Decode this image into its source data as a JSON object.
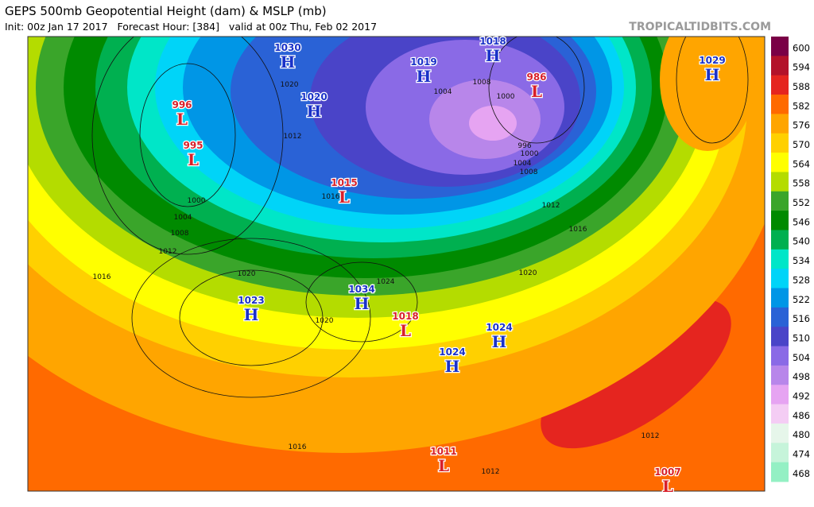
{
  "header": {
    "title": "GEPS 500mb Geopotential Height (dam) & MSLP (mb)",
    "subtitle": "Init: 00z Jan 17 2017   Forecast Hour: [384]   valid at 00z Thu, Feb 02 2017",
    "credit": "TROPICALTIDBITS.COM"
  },
  "colorbar": {
    "levels": [
      600,
      594,
      588,
      582,
      576,
      570,
      564,
      558,
      552,
      546,
      540,
      534,
      528,
      522,
      516,
      510,
      504,
      498,
      492,
      486,
      480,
      474,
      468
    ],
    "colors": [
      "#7a0046",
      "#b3122a",
      "#e5251f",
      "#ff6a00",
      "#ffa500",
      "#ffd000",
      "#ffff00",
      "#b4dc00",
      "#3aa52a",
      "#008a00",
      "#00b050",
      "#00e6c8",
      "#00d4f8",
      "#0096e6",
      "#2a62d6",
      "#4a44c8",
      "#8a6ae6",
      "#b886ea",
      "#e6a4f2",
      "#f4cdf4",
      "#e6f6ea",
      "#c6f4da",
      "#94f0c4"
    ]
  },
  "centers": [
    {
      "letter": "H",
      "value": 1030
    },
    {
      "letter": "H",
      "value": 1020
    },
    {
      "letter": "L",
      "value": 996
    },
    {
      "letter": "L",
      "value": 995
    },
    {
      "letter": "L",
      "value": 1015
    },
    {
      "letter": "H",
      "value": 1023
    },
    {
      "letter": "H",
      "value": 1034
    },
    {
      "letter": "L",
      "value": 1018
    },
    {
      "letter": "H",
      "value": 1024
    },
    {
      "letter": "H",
      "value": 1024
    },
    {
      "letter": "H",
      "value": 1019
    },
    {
      "letter": "H",
      "value": 1018
    },
    {
      "letter": "L",
      "value": 986
    },
    {
      "letter": "H",
      "value": 1029
    },
    {
      "letter": "L",
      "value": 1011
    },
    {
      "letter": "L",
      "value": 1007
    }
  ],
  "contour_labels": [
    1000,
    1004,
    1008,
    1012,
    1016,
    1020,
    1016,
    1012,
    1016,
    1020,
    1012,
    996,
    1000,
    1004,
    1008,
    1024,
    1020,
    1012,
    1008,
    1004,
    1000,
    1016,
    1020,
    1012
  ]
}
